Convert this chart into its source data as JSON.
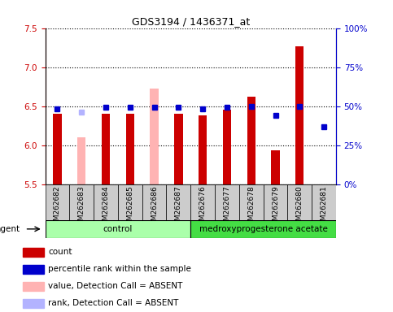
{
  "title": "GDS3194 / 1436371_at",
  "samples": [
    "GSM262682",
    "GSM262683",
    "GSM262684",
    "GSM262685",
    "GSM262686",
    "GSM262687",
    "GSM262676",
    "GSM262677",
    "GSM262678",
    "GSM262679",
    "GSM262680",
    "GSM262681"
  ],
  "bar_values": [
    6.4,
    6.1,
    6.4,
    6.4,
    6.72,
    6.4,
    6.38,
    6.45,
    6.62,
    5.93,
    7.27,
    5.5
  ],
  "bar_absent": [
    false,
    true,
    false,
    false,
    true,
    false,
    false,
    false,
    false,
    false,
    false,
    false
  ],
  "rank_values": [
    48,
    46,
    49,
    49,
    49,
    49,
    48,
    49,
    50,
    44,
    50,
    37
  ],
  "rank_absent": [
    false,
    true,
    false,
    false,
    false,
    false,
    false,
    false,
    false,
    false,
    false,
    false
  ],
  "ylim_left": [
    5.5,
    7.5
  ],
  "ylim_right": [
    0,
    100
  ],
  "yticks_left": [
    5.5,
    6.0,
    6.5,
    7.0,
    7.5
  ],
  "yticks_right": [
    0,
    25,
    50,
    75,
    100
  ],
  "ytick_labels_right": [
    "0%",
    "25%",
    "50%",
    "75%",
    "100%"
  ],
  "control_count": 6,
  "control_label": "control",
  "treat_label": "medroxyprogesterone acetate",
  "agent_label": "agent",
  "bar_color_normal": "#cc0000",
  "bar_color_absent": "#ffb3b3",
  "rank_color_normal": "#0000cc",
  "rank_color_absent": "#b3b3ff",
  "control_bg": "#aaffaa",
  "treat_bg": "#44dd44",
  "xlabel_bg": "#cccccc",
  "bar_width": 0.35,
  "rank_marker_size": 5,
  "legend_items": [
    {
      "color": "#cc0000",
      "label": "count"
    },
    {
      "color": "#0000cc",
      "label": "percentile rank within the sample"
    },
    {
      "color": "#ffb3b3",
      "label": "value, Detection Call = ABSENT"
    },
    {
      "color": "#b3b3ff",
      "label": "rank, Detection Call = ABSENT"
    }
  ]
}
